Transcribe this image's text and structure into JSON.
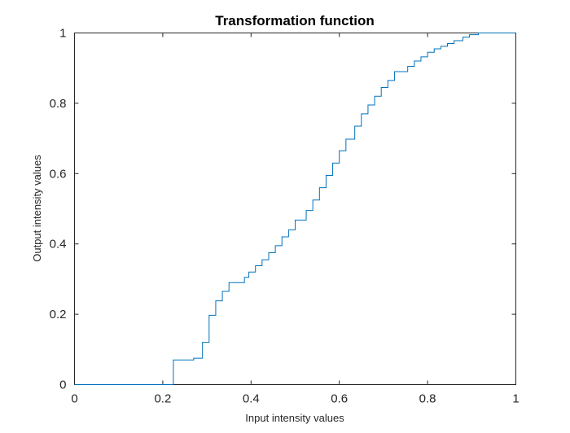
{
  "chart_data": {
    "type": "line",
    "title": "Transformation function",
    "xlabel": "Input intensity values",
    "ylabel": "Output intensity values",
    "xlim": [
      0,
      1
    ],
    "ylim": [
      0,
      1
    ],
    "xticks": [
      0,
      0.2,
      0.4,
      0.6,
      0.8,
      1
    ],
    "yticks": [
      0,
      0.2,
      0.4,
      0.6,
      0.8,
      1
    ],
    "xtick_labels": [
      "0",
      "0.2",
      "0.4",
      "0.6",
      "0.8",
      "1"
    ],
    "ytick_labels": [
      "0",
      "0.2",
      "0.4",
      "0.6",
      "0.8",
      "1"
    ],
    "grid": false,
    "line_style": "step",
    "series": [
      {
        "color": "#0072BD",
        "steps": [
          [
            0.0,
            0.0
          ],
          [
            0.224,
            0.07
          ],
          [
            0.27,
            0.075
          ],
          [
            0.29,
            0.12
          ],
          [
            0.305,
            0.197
          ],
          [
            0.32,
            0.238
          ],
          [
            0.335,
            0.265
          ],
          [
            0.35,
            0.29
          ],
          [
            0.385,
            0.305
          ],
          [
            0.395,
            0.32
          ],
          [
            0.41,
            0.338
          ],
          [
            0.425,
            0.355
          ],
          [
            0.44,
            0.375
          ],
          [
            0.455,
            0.395
          ],
          [
            0.47,
            0.42
          ],
          [
            0.485,
            0.44
          ],
          [
            0.5,
            0.468
          ],
          [
            0.525,
            0.495
          ],
          [
            0.54,
            0.525
          ],
          [
            0.555,
            0.56
          ],
          [
            0.57,
            0.595
          ],
          [
            0.585,
            0.63
          ],
          [
            0.6,
            0.665
          ],
          [
            0.615,
            0.698
          ],
          [
            0.635,
            0.735
          ],
          [
            0.65,
            0.77
          ],
          [
            0.665,
            0.795
          ],
          [
            0.68,
            0.82
          ],
          [
            0.695,
            0.845
          ],
          [
            0.71,
            0.865
          ],
          [
            0.725,
            0.89
          ],
          [
            0.755,
            0.905
          ],
          [
            0.77,
            0.92
          ],
          [
            0.785,
            0.932
          ],
          [
            0.8,
            0.945
          ],
          [
            0.815,
            0.955
          ],
          [
            0.83,
            0.962
          ],
          [
            0.845,
            0.97
          ],
          [
            0.86,
            0.978
          ],
          [
            0.88,
            0.988
          ],
          [
            0.895,
            0.995
          ],
          [
            0.915,
            1.0
          ],
          [
            1.0,
            1.0
          ]
        ]
      }
    ]
  }
}
